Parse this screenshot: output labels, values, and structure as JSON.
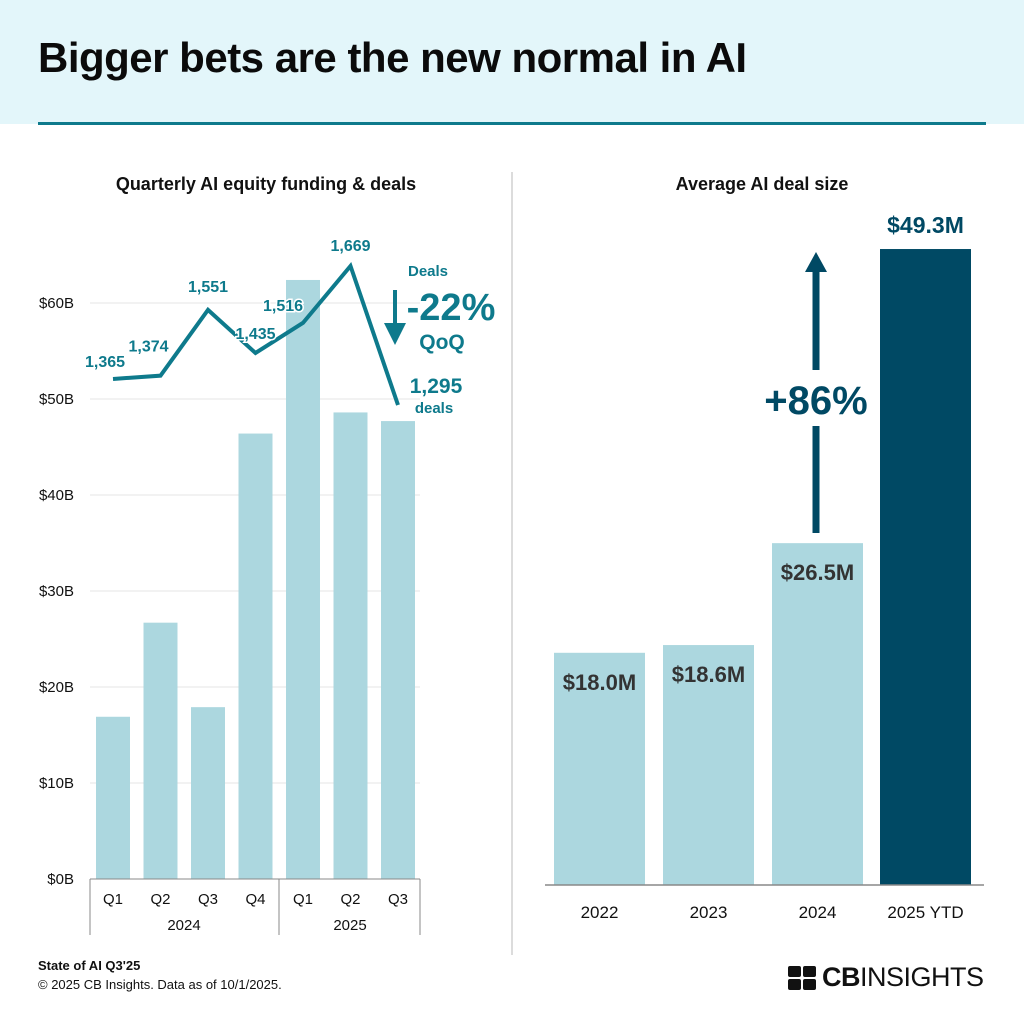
{
  "header": {
    "title": "Bigger bets are the new normal in AI"
  },
  "colors": {
    "bar_light": "#acd7df",
    "bar_dark": "#004964",
    "line": "#0e7a8c",
    "header_bg": "#e3f6fa"
  },
  "chart_data": [
    {
      "type": "bar+line",
      "title": "Quarterly AI equity funding & deals",
      "categories": [
        "Q1",
        "Q2",
        "Q3",
        "Q4",
        "Q1",
        "Q2",
        "Q3"
      ],
      "groups": [
        {
          "label": "2024",
          "span": 4
        },
        {
          "label": "2025",
          "span": 3
        }
      ],
      "yticks": [
        "$0B",
        "$10B",
        "$20B",
        "$30B",
        "$40B",
        "$50B",
        "$60B"
      ],
      "ylim": [
        0,
        60
      ],
      "grid": true,
      "series": [
        {
          "name": "Funding",
          "type": "bar",
          "unit": "$B",
          "values": [
            16.9,
            26.7,
            17.9,
            46.4,
            62.4,
            48.6,
            47.7
          ]
        },
        {
          "name": "Deals",
          "type": "line",
          "values": [
            1365,
            1374,
            1551,
            1435,
            1516,
            1669,
            1295
          ],
          "labels": [
            "1,365",
            "1,374",
            "1,551",
            "1,435",
            "1,516",
            "1,669",
            "1,295"
          ]
        }
      ],
      "annotations": {
        "deals_label": "Deals",
        "change": "-22%",
        "change_unit": "QoQ",
        "last_suffix": "deals"
      }
    },
    {
      "type": "bar",
      "title": "Average AI deal size",
      "categories": [
        "2022",
        "2023",
        "2024",
        "2025 YTD"
      ],
      "values": [
        18.0,
        18.6,
        26.5,
        49.3
      ],
      "labels": [
        "$18.0M",
        "$18.6M",
        "$26.5M",
        "$49.3M"
      ],
      "unit": "$M",
      "annotation": "+86%"
    }
  ],
  "footer": {
    "source": "State of AI Q3'25",
    "copyright": "© 2025 CB Insights. Data as of 10/1/2025.",
    "logo_text_bold": "CB",
    "logo_text": "INSIGHTS"
  }
}
